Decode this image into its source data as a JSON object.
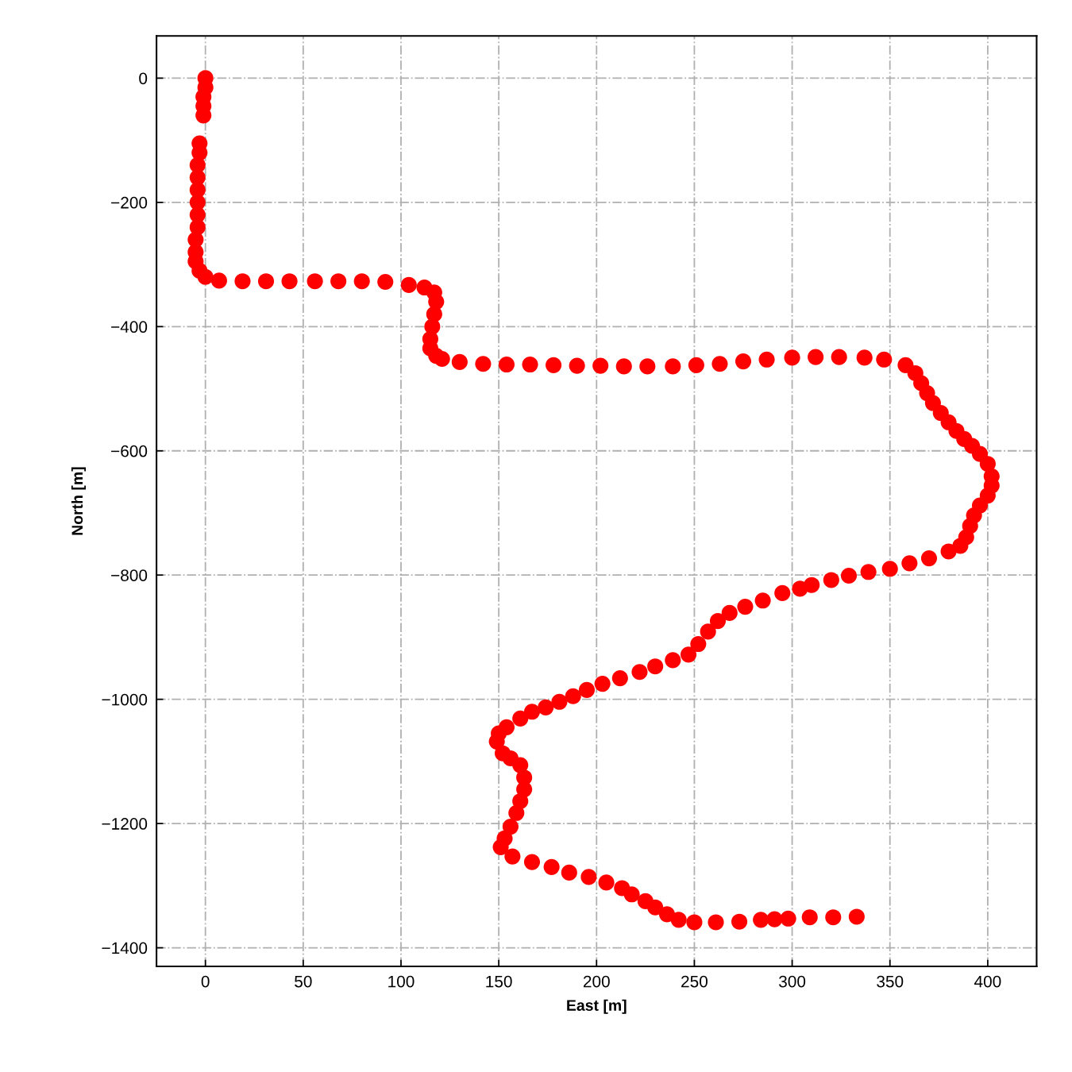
{
  "chart_data": {
    "type": "scatter",
    "xlabel": "East [m]",
    "ylabel": "North [m]",
    "marker": "circle",
    "grid": true,
    "xlim": [
      -25,
      425
    ],
    "xticks": [
      0,
      50,
      100,
      150,
      200,
      250,
      300,
      350,
      400
    ],
    "ylim": [
      -1430,
      68
    ],
    "yticks": [
      0,
      -200,
      -400,
      -600,
      -800,
      -1000,
      -1200,
      -1400
    ],
    "series": [
      {
        "color": "#ff0000",
        "x": [
          0,
          0,
          -1,
          -1,
          -1,
          -3,
          -3,
          -4,
          -4,
          -4,
          -4,
          -4,
          -4,
          -5,
          -5,
          -5,
          -3,
          0,
          7,
          19,
          31,
          43,
          56,
          68,
          80,
          92,
          104,
          112,
          117,
          118,
          117,
          116,
          115,
          115,
          118,
          121,
          130,
          142,
          154,
          166,
          178,
          190,
          202,
          214,
          226,
          239,
          251,
          263,
          275,
          287,
          300,
          312,
          324,
          337,
          347,
          358,
          363,
          366,
          369,
          372,
          376,
          380,
          384,
          388,
          392,
          396,
          400,
          402,
          402,
          400,
          396,
          393,
          391,
          389,
          386,
          380,
          370,
          360,
          350,
          339,
          329,
          320,
          310,
          304,
          295,
          285,
          276,
          268,
          262,
          257,
          252,
          247,
          239,
          230,
          222,
          212,
          203,
          195,
          188,
          181,
          174,
          167,
          161,
          154,
          150,
          149,
          152,
          156,
          161,
          163,
          163,
          161,
          159,
          156,
          153,
          151,
          157,
          167,
          177,
          186,
          196,
          205,
          213,
          218,
          225,
          230,
          236,
          242,
          250,
          261,
          273,
          284,
          291,
          298,
          309,
          321,
          333
        ],
        "values": [
          0,
          -15,
          -30,
          -45,
          -60,
          -105,
          -120,
          -140,
          -160,
          -180,
          -200,
          -220,
          -240,
          -260,
          -280,
          -295,
          -310,
          -320,
          -326,
          -327,
          -327,
          -327,
          -327,
          -327,
          -327,
          -328,
          -333,
          -337,
          -345,
          -360,
          -380,
          -400,
          -420,
          -435,
          -447,
          -452,
          -457,
          -460,
          -461,
          -461,
          -462,
          -463,
          -463,
          -464,
          -464,
          -464,
          -462,
          -460,
          -456,
          -453,
          -450,
          -449,
          -449,
          -450,
          -453,
          -462,
          -475,
          -491,
          -507,
          -523,
          -539,
          -554,
          -568,
          -581,
          -592,
          -605,
          -621,
          -641,
          -656,
          -672,
          -688,
          -704,
          -721,
          -739,
          -753,
          -762,
          -773,
          -781,
          -790,
          -795,
          -801,
          -808,
          -816,
          -822,
          -829,
          -841,
          -851,
          -861,
          -874,
          -891,
          -911,
          -928,
          -937,
          -947,
          -956,
          -966,
          -975,
          -985,
          -995,
          -1004,
          -1013,
          -1020,
          -1031,
          -1045,
          -1055,
          -1068,
          -1087,
          -1095,
          -1106,
          -1126,
          -1145,
          -1164,
          -1183,
          -1205,
          -1224,
          -1238,
          -1253,
          -1262,
          -1270,
          -1279,
          -1286,
          -1295,
          -1304,
          -1314,
          -1325,
          -1335,
          -1346,
          -1355,
          -1359,
          -1359,
          -1358,
          -1355,
          -1354,
          -1353,
          -1351,
          -1351,
          -1350
        ]
      }
    ]
  }
}
